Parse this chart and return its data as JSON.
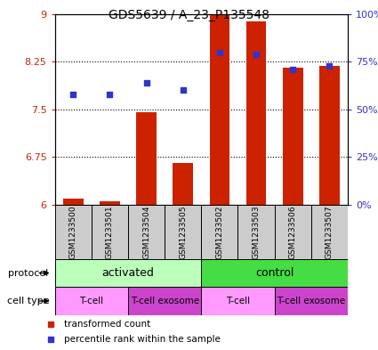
{
  "title": "GDS5639 / A_23_P135548",
  "samples": [
    "GSM1233500",
    "GSM1233501",
    "GSM1233504",
    "GSM1233505",
    "GSM1233502",
    "GSM1233503",
    "GSM1233506",
    "GSM1233507"
  ],
  "transformed_count": [
    6.1,
    6.05,
    7.45,
    6.65,
    8.99,
    8.88,
    8.16,
    8.18
  ],
  "percentile_rank": [
    58,
    58,
    64,
    60,
    80,
    79,
    71,
    73
  ],
  "ylim_left": [
    6,
    9
  ],
  "ylim_right": [
    0,
    100
  ],
  "yticks_left": [
    6,
    6.75,
    7.5,
    8.25,
    9
  ],
  "yticks_right": [
    0,
    25,
    50,
    75,
    100
  ],
  "ytick_labels_right": [
    "0%",
    "25%",
    "50%",
    "75%",
    "100%"
  ],
  "bar_color": "#cc2200",
  "dot_color": "#3333cc",
  "protocol_groups": [
    {
      "label": "activated",
      "span": [
        0,
        4
      ],
      "color": "#bbffbb"
    },
    {
      "label": "control",
      "span": [
        4,
        8
      ],
      "color": "#44dd44"
    }
  ],
  "cell_type_groups": [
    {
      "label": "T-cell",
      "span": [
        0,
        2
      ],
      "color": "#ff99ff"
    },
    {
      "label": "T-cell exosome",
      "span": [
        2,
        4
      ],
      "color": "#cc44cc"
    },
    {
      "label": "T-cell",
      "span": [
        4,
        6
      ],
      "color": "#ff99ff"
    },
    {
      "label": "T-cell exosome",
      "span": [
        6,
        8
      ],
      "color": "#cc44cc"
    }
  ],
  "legend_items": [
    {
      "label": "transformed count",
      "color": "#cc2200",
      "marker": "s"
    },
    {
      "label": "percentile rank within the sample",
      "color": "#3333cc",
      "marker": "s"
    }
  ],
  "background_color": "#ffffff",
  "sample_bg_color": "#cccccc"
}
